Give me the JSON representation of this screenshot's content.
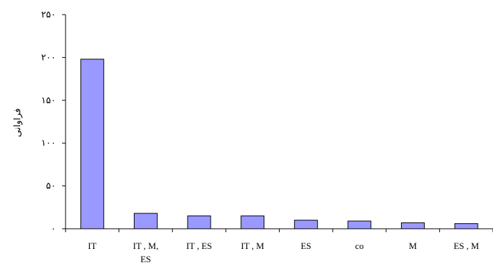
{
  "chart_data": {
    "type": "bar",
    "title": "",
    "xlabel": "",
    "ylabel": "فراوانی",
    "categories": [
      [
        "IT"
      ],
      [
        "IT , M,",
        "ES"
      ],
      [
        "IT , ES"
      ],
      [
        "IT , M"
      ],
      [
        "ES"
      ],
      [
        "co"
      ],
      [
        "M"
      ],
      [
        "ES , M"
      ]
    ],
    "values": [
      198,
      18,
      15,
      15,
      10,
      9,
      7,
      6
    ],
    "ylim": [
      0,
      250
    ],
    "yticks": [
      {
        "value": 0,
        "label": "۰"
      },
      {
        "value": 50,
        "label": "۵۰"
      },
      {
        "value": 100,
        "label": "۱۰۰"
      },
      {
        "value": 150,
        "label": "۱۵۰"
      },
      {
        "value": 200,
        "label": "۲۰۰"
      },
      {
        "value": 250,
        "label": "۲۵۰"
      }
    ],
    "grid": false,
    "legend": "none",
    "colors": {
      "bar_fill": "#9999ff",
      "bar_stroke": "#000000",
      "axis": "#000000"
    }
  }
}
